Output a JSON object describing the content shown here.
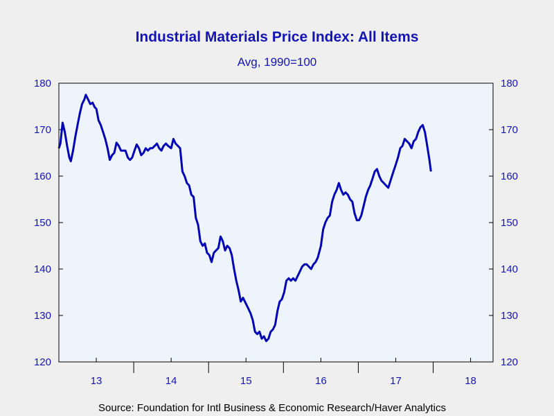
{
  "chart_data": {
    "type": "line",
    "title": "Industrial Materials Price Index: All Items",
    "subtitle": "Avg, 1990=100",
    "source": "Source:  Foundation for Intl Business & Economic Research/Haver Analytics",
    "ylim": [
      120,
      180
    ],
    "yticks": [
      "120",
      "130",
      "140",
      "150",
      "160",
      "170",
      "180"
    ],
    "xlim": [
      2012.5,
      2018.3
    ],
    "xticks": [
      {
        "label": "13",
        "value": 2013.0
      },
      {
        "label": "14",
        "value": 2014.0
      },
      {
        "label": "15",
        "value": 2015.0
      },
      {
        "label": "16",
        "value": 2016.0
      },
      {
        "label": "17",
        "value": 2017.0
      },
      {
        "label": "18",
        "value": 2018.0
      }
    ],
    "year_boundaries": [
      2013.5,
      2014.5,
      2015.5,
      2016.5,
      2017.5
    ],
    "grid": false,
    "line_color": "#0000b4",
    "plot_background": "#eef4fc",
    "series": [
      {
        "points": [
          [
            2012.5,
            166.0
          ],
          [
            2012.52,
            167.0
          ],
          [
            2012.55,
            171.5
          ],
          [
            2012.58,
            169.5
          ],
          [
            2012.61,
            166.5
          ],
          [
            2012.64,
            164.0
          ],
          [
            2012.66,
            163.2
          ],
          [
            2012.69,
            165.5
          ],
          [
            2012.72,
            168.5
          ],
          [
            2012.75,
            171.0
          ],
          [
            2012.78,
            173.5
          ],
          [
            2012.81,
            175.5
          ],
          [
            2012.84,
            176.5
          ],
          [
            2012.86,
            177.5
          ],
          [
            2012.89,
            176.5
          ],
          [
            2012.92,
            175.5
          ],
          [
            2012.95,
            175.8
          ],
          [
            2012.98,
            174.8
          ],
          [
            2013.0,
            174.5
          ],
          [
            2013.03,
            172.0
          ],
          [
            2013.06,
            171.0
          ],
          [
            2013.09,
            169.5
          ],
          [
            2013.12,
            168.0
          ],
          [
            2013.15,
            166.0
          ],
          [
            2013.18,
            163.5
          ],
          [
            2013.21,
            164.5
          ],
          [
            2013.24,
            165.0
          ],
          [
            2013.27,
            167.2
          ],
          [
            2013.3,
            166.5
          ],
          [
            2013.33,
            165.5
          ],
          [
            2013.36,
            165.5
          ],
          [
            2013.39,
            165.5
          ],
          [
            2013.42,
            164.0
          ],
          [
            2013.45,
            163.5
          ],
          [
            2013.48,
            164.0
          ],
          [
            2013.51,
            165.5
          ],
          [
            2013.54,
            166.8
          ],
          [
            2013.57,
            166.0
          ],
          [
            2013.6,
            164.5
          ],
          [
            2013.63,
            165.0
          ],
          [
            2013.66,
            166.0
          ],
          [
            2013.69,
            165.5
          ],
          [
            2013.72,
            166.0
          ],
          [
            2013.75,
            166.0
          ],
          [
            2013.78,
            166.5
          ],
          [
            2013.81,
            167.0
          ],
          [
            2013.84,
            166.0
          ],
          [
            2013.87,
            165.5
          ],
          [
            2013.9,
            166.5
          ],
          [
            2013.93,
            167.0
          ],
          [
            2013.96,
            166.5
          ],
          [
            2014.0,
            166.0
          ],
          [
            2014.03,
            168.0
          ],
          [
            2014.06,
            167.0
          ],
          [
            2014.09,
            166.5
          ],
          [
            2014.12,
            166.0
          ],
          [
            2014.15,
            161.0
          ],
          [
            2014.18,
            160.0
          ],
          [
            2014.21,
            158.5
          ],
          [
            2014.24,
            158.0
          ],
          [
            2014.27,
            156.0
          ],
          [
            2014.3,
            155.5
          ],
          [
            2014.33,
            151.0
          ],
          [
            2014.36,
            149.5
          ],
          [
            2014.39,
            146.0
          ],
          [
            2014.42,
            145.0
          ],
          [
            2014.45,
            145.5
          ],
          [
            2014.48,
            143.5
          ],
          [
            2014.51,
            143.0
          ],
          [
            2014.54,
            141.5
          ],
          [
            2014.57,
            143.5
          ],
          [
            2014.6,
            144.0
          ],
          [
            2014.63,
            144.5
          ],
          [
            2014.66,
            147.0
          ],
          [
            2014.69,
            146.0
          ],
          [
            2014.72,
            144.0
          ],
          [
            2014.75,
            145.0
          ],
          [
            2014.78,
            144.5
          ],
          [
            2014.81,
            143.0
          ],
          [
            2014.84,
            140.0
          ],
          [
            2014.87,
            137.5
          ],
          [
            2014.9,
            135.5
          ],
          [
            2014.93,
            133.0
          ],
          [
            2014.96,
            133.8
          ],
          [
            2015.0,
            132.5
          ],
          [
            2015.03,
            131.5
          ],
          [
            2015.06,
            130.5
          ],
          [
            2015.09,
            129.0
          ],
          [
            2015.12,
            126.5
          ],
          [
            2015.15,
            126.0
          ],
          [
            2015.18,
            126.5
          ],
          [
            2015.21,
            125.0
          ],
          [
            2015.24,
            125.5
          ],
          [
            2015.27,
            124.5
          ],
          [
            2015.3,
            125.0
          ],
          [
            2015.33,
            126.5
          ],
          [
            2015.36,
            127.0
          ],
          [
            2015.39,
            128.0
          ],
          [
            2015.42,
            131.0
          ],
          [
            2015.45,
            133.0
          ],
          [
            2015.48,
            133.5
          ],
          [
            2015.51,
            135.0
          ],
          [
            2015.54,
            137.5
          ],
          [
            2015.57,
            138.0
          ],
          [
            2015.6,
            137.5
          ],
          [
            2015.63,
            138.0
          ],
          [
            2015.66,
            137.5
          ],
          [
            2015.69,
            138.5
          ],
          [
            2015.72,
            139.5
          ],
          [
            2015.75,
            140.5
          ],
          [
            2015.78,
            141.0
          ],
          [
            2015.81,
            141.0
          ],
          [
            2015.84,
            140.5
          ],
          [
            2015.87,
            140.0
          ],
          [
            2015.9,
            141.0
          ],
          [
            2015.93,
            141.5
          ],
          [
            2015.96,
            142.5
          ],
          [
            2016.0,
            145.0
          ],
          [
            2016.03,
            148.5
          ],
          [
            2016.06,
            150.0
          ],
          [
            2016.09,
            151.0
          ],
          [
            2016.12,
            151.5
          ],
          [
            2016.15,
            154.5
          ],
          [
            2016.18,
            156.0
          ],
          [
            2016.21,
            157.0
          ],
          [
            2016.24,
            158.5
          ],
          [
            2016.27,
            157.0
          ],
          [
            2016.3,
            156.0
          ],
          [
            2016.33,
            156.5
          ],
          [
            2016.36,
            156.0
          ],
          [
            2016.39,
            155.0
          ],
          [
            2016.42,
            154.5
          ],
          [
            2016.45,
            152.0
          ],
          [
            2016.48,
            150.5
          ],
          [
            2016.51,
            150.5
          ],
          [
            2016.54,
            151.5
          ],
          [
            2016.57,
            153.5
          ],
          [
            2016.6,
            155.5
          ],
          [
            2016.63,
            157.0
          ],
          [
            2016.66,
            158.0
          ],
          [
            2016.69,
            159.5
          ],
          [
            2016.72,
            161.0
          ],
          [
            2016.75,
            161.5
          ],
          [
            2016.78,
            160.0
          ],
          [
            2016.81,
            159.0
          ],
          [
            2016.84,
            158.5
          ],
          [
            2016.87,
            158.0
          ],
          [
            2016.9,
            157.5
          ],
          [
            2016.93,
            159.0
          ],
          [
            2016.96,
            160.5
          ],
          [
            2017.0,
            162.5
          ],
          [
            2017.03,
            164.0
          ],
          [
            2017.06,
            166.0
          ],
          [
            2017.09,
            166.5
          ],
          [
            2017.12,
            168.0
          ],
          [
            2017.15,
            167.5
          ],
          [
            2017.18,
            167.0
          ],
          [
            2017.21,
            166.0
          ],
          [
            2017.24,
            167.5
          ],
          [
            2017.27,
            168.0
          ],
          [
            2017.3,
            169.5
          ],
          [
            2017.33,
            170.5
          ],
          [
            2017.36,
            171.0
          ],
          [
            2017.39,
            169.5
          ],
          [
            2017.42,
            166.5
          ],
          [
            2017.45,
            163.5
          ],
          [
            2017.47,
            161.0
          ]
        ]
      }
    ]
  }
}
